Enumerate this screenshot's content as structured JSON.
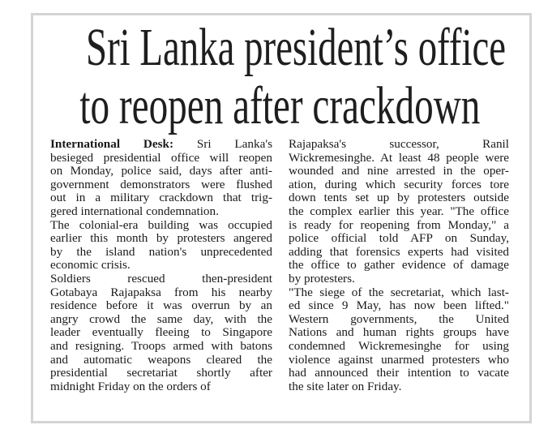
{
  "headline": {
    "line1": "Sri Lanka president’s office",
    "line2": "to reopen after crackdown"
  },
  "byline_lead": "International Desk:",
  "columns": {
    "left": [
      [
        "Sri Lanka's",
        "besieged presidential office will reopen",
        "on Monday, police said, days after anti-",
        "government demonstrators were flushed",
        "out in a military crackdown that trig-",
        "gered international condemnation."
      ],
      [
        "The colonial-era building was occupied",
        "earlier this month by protesters angered",
        "by the island nation's unprecedented",
        "economic crisis."
      ],
      [
        "Soldiers rescued then-president",
        "Gotabaya Rajapaksa from his nearby",
        "residence before it was overrun by an",
        "angry crowd the same day, with the",
        "leader eventually fleeing to Singapore",
        "and resigning. Troops armed with batons",
        "and automatic weapons cleared the",
        "presidential secretariat shortly after",
        "midnight Friday on the orders of"
      ]
    ],
    "right": [
      [
        "Rajapaksa's successor, Ranil",
        "Wickremesinghe. At least 48 people were",
        "wounded and nine arrested in the oper-",
        "ation, during which security forces tore",
        "down tents set up by protesters outside",
        "the complex earlier this year. \"The office",
        "is ready for reopening from Monday,\" a",
        "police official told AFP on Sunday,",
        "adding that forensics experts had visited",
        "the office to gather evidence of damage",
        "by protesters."
      ],
      [
        "\"The siege of the secretariat, which last-",
        "ed since 9 May, has now been lifted.\"",
        "Western governments, the United",
        "Nations and human rights groups have",
        "condemned Wickremesinghe for using",
        "violence against unarmed protesters who",
        "had announced their intention to vacate",
        "the site later on Friday."
      ]
    ]
  }
}
